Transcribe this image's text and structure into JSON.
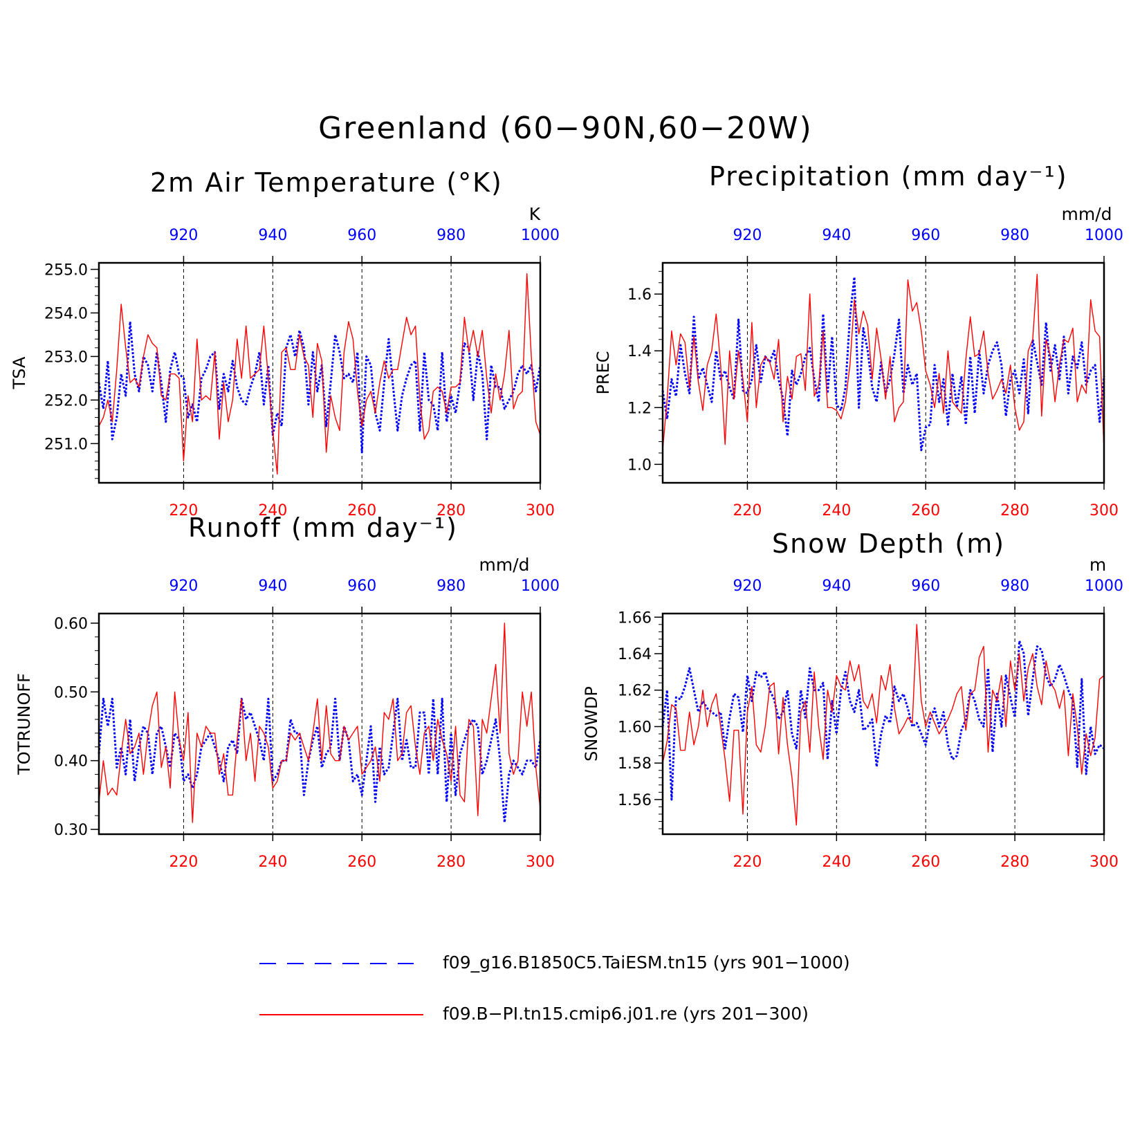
{
  "title": "Greenland (60−90N,60−20W)",
  "legend": [
    {
      "label": "f09_g16.B1850C5.TaiESM.tn15 (yrs 901−1000)",
      "color": "#0000ff",
      "style": "dashed"
    },
    {
      "label": "f09.B−PI.tn15.cmip6.j01.re (yrs 201−300)",
      "color": "#ff0000",
      "style": "solid"
    }
  ],
  "chart_data": [
    {
      "type": "line",
      "title": "2m Air Temperature (°K)",
      "ylabel": "TSA",
      "units": "K",
      "ylim": [
        250.1,
        255.15
      ],
      "yticks": [
        251.0,
        252.0,
        253.0,
        254.0,
        255.0
      ],
      "ytick_labels": [
        "251.0",
        "252.0",
        "253.0",
        "254.0",
        "255.0"
      ],
      "xlim_bottom": [
        201,
        300
      ],
      "xlim_top": [
        901,
        1000
      ],
      "xticks_bottom": [
        220,
        240,
        260,
        280,
        300
      ],
      "xticks_top": [
        920,
        940,
        960,
        980,
        1000
      ],
      "grid_x": [
        220,
        240,
        260,
        280
      ],
      "series": [
        {
          "name": "f09_g16.B1850C5.TaiESM.tn15 (yrs 901−1000)",
          "axis": "top",
          "color": "#0000ff",
          "x_start": 901,
          "x_step": 1,
          "values": [
            252.4,
            251.8,
            252.9,
            251.1,
            251.6,
            252.6,
            252.1,
            253.8,
            252.6,
            252.2,
            253.0,
            252.8,
            252.2,
            253.1,
            252.4,
            251.5,
            252.7,
            253.1,
            252.6,
            252.5,
            251.6,
            251.9,
            251.5,
            252.5,
            252.7,
            253.0,
            253.1,
            251.8,
            252.6,
            252.2,
            252.9,
            252.3,
            252.0,
            251.9,
            252.3,
            252.6,
            253.1,
            251.9,
            252.8,
            251.2,
            251.7,
            251.4,
            253.2,
            253.5,
            253.0,
            253.6,
            253.2,
            251.9,
            253.1,
            252.2,
            252.8,
            251.4,
            252.4,
            253.5,
            253.1,
            252.5,
            252.6,
            252.4,
            253.1,
            250.8,
            253.0,
            252.8,
            251.7,
            251.3,
            252.4,
            253.4,
            252.3,
            251.3,
            252.1,
            252.5,
            252.8,
            252.9,
            251.3,
            253.1,
            252.0,
            251.9,
            251.3,
            253.1,
            251.5,
            252.1,
            251.7,
            252.4,
            253.3,
            253.2,
            252.0,
            253.1,
            252.6,
            251.1,
            252.8,
            252.3,
            252.3,
            251.8,
            252.0,
            252.2,
            252.6,
            252.8,
            252.6,
            252.8,
            252.2,
            252.8
          ]
        },
        {
          "name": "f09.B−PI.tn15.cmip6.j01.re (yrs 201−300)",
          "axis": "bottom",
          "color": "#ff0000",
          "x_start": 201,
          "x_step": 1,
          "values": [
            251.4,
            251.6,
            252.0,
            251.5,
            252.7,
            254.2,
            253.2,
            252.4,
            252.5,
            252.3,
            253.0,
            253.5,
            253.3,
            253.2,
            252.1,
            252.0,
            252.6,
            252.6,
            252.5,
            250.6,
            252.1,
            251.5,
            253.4,
            252.0,
            252.1,
            252.0,
            253.1,
            251.1,
            252.4,
            251.5,
            252.0,
            253.4,
            252.5,
            253.7,
            252.5,
            252.6,
            252.7,
            253.7,
            252.5,
            251.3,
            250.3,
            253.1,
            253.2,
            252.7,
            252.7,
            253.5,
            253.0,
            252.8,
            251.6,
            253.3,
            252.9,
            250.8,
            252.1,
            251.6,
            251.3,
            253.1,
            253.8,
            253.4,
            252.2,
            251.4,
            252.0,
            252.2,
            251.7,
            252.4,
            252.9,
            252.5,
            252.7,
            252.7,
            253.3,
            253.9,
            253.5,
            253.7,
            252.0,
            251.1,
            251.3,
            252.2,
            252.3,
            252.2,
            251.7,
            252.3,
            252.3,
            252.4,
            253.9,
            253.1,
            253.6,
            253.0,
            253.6,
            252.5,
            251.7,
            252.6,
            252.0,
            252.6,
            253.6,
            251.8,
            252.1,
            252.2,
            254.9,
            253.0,
            251.5,
            251.2
          ]
        }
      ]
    },
    {
      "type": "line",
      "title": "Precipitation (mm day⁻¹)",
      "ylabel": "PREC",
      "units": "mm/d",
      "ylim": [
        0.935,
        1.71
      ],
      "yticks": [
        1.0,
        1.2,
        1.4,
        1.6
      ],
      "ytick_labels": [
        "1.0",
        "1.2",
        "1.4",
        "1.6"
      ],
      "xlim_bottom": [
        201,
        300
      ],
      "xlim_top": [
        901,
        1000
      ],
      "xticks_bottom": [
        220,
        240,
        260,
        280,
        300
      ],
      "xticks_top": [
        920,
        940,
        960,
        980,
        1000
      ],
      "grid_x": [
        220,
        240,
        260,
        280
      ],
      "series": [
        {
          "name": "f09_g16.B1850C5.TaiESM.tn15 (yrs 901−1000)",
          "axis": "top",
          "color": "#0000ff",
          "x_start": 901,
          "x_step": 1,
          "values": [
            1.26,
            1.16,
            1.3,
            1.24,
            1.42,
            1.32,
            1.25,
            1.52,
            1.3,
            1.34,
            1.28,
            1.22,
            1.4,
            1.3,
            1.33,
            1.27,
            1.23,
            1.51,
            1.26,
            1.25,
            1.3,
            1.42,
            1.29,
            1.38,
            1.36,
            1.4,
            1.3,
            1.23,
            1.1,
            1.33,
            1.28,
            1.32,
            1.38,
            1.41,
            1.3,
            1.22,
            1.53,
            1.25,
            1.45,
            1.21,
            1.19,
            1.27,
            1.52,
            1.66,
            1.2,
            1.48,
            1.4,
            1.27,
            1.22,
            1.36,
            1.25,
            1.3,
            1.39,
            1.51,
            1.25,
            1.35,
            1.28,
            1.32,
            1.05,
            1.13,
            1.14,
            1.35,
            1.22,
            1.3,
            1.14,
            1.32,
            1.2,
            1.31,
            1.14,
            1.38,
            1.18,
            1.4,
            1.25,
            1.35,
            1.4,
            1.43,
            1.35,
            1.17,
            1.3,
            1.33,
            1.25,
            1.37,
            1.18,
            1.44,
            1.36,
            1.28,
            1.5,
            1.33,
            1.42,
            1.3,
            1.45,
            1.25,
            1.38,
            1.34,
            1.43,
            1.28,
            1.33,
            1.35,
            1.15,
            1.31
          ]
        },
        {
          "name": "f09.B−PI.tn15.cmip6.j01.re (yrs 201−300)",
          "axis": "bottom",
          "color": "#ff0000",
          "x_start": 201,
          "x_step": 1,
          "values": [
            1.05,
            1.23,
            1.47,
            1.35,
            1.46,
            1.43,
            1.27,
            1.45,
            1.29,
            1.19,
            1.35,
            1.4,
            1.53,
            1.35,
            1.07,
            1.4,
            1.23,
            1.4,
            1.3,
            1.15,
            1.5,
            1.2,
            1.35,
            1.38,
            1.36,
            1.3,
            1.44,
            1.15,
            1.31,
            1.23,
            1.38,
            1.39,
            1.26,
            1.6,
            1.24,
            1.28,
            1.47,
            1.2,
            1.2,
            1.19,
            1.16,
            1.22,
            1.35,
            1.58,
            1.46,
            1.54,
            1.49,
            1.3,
            1.48,
            1.37,
            1.23,
            1.38,
            1.15,
            1.2,
            1.22,
            1.65,
            1.54,
            1.57,
            1.47,
            1.33,
            1.28,
            1.2,
            1.32,
            1.18,
            1.4,
            1.22,
            1.2,
            1.18,
            1.37,
            1.52,
            1.38,
            1.39,
            1.47,
            1.32,
            1.23,
            1.26,
            1.3,
            1.25,
            1.35,
            1.2,
            1.12,
            1.15,
            1.4,
            1.44,
            1.67,
            1.17,
            1.44,
            1.38,
            1.22,
            1.35,
            1.44,
            1.43,
            1.48,
            1.22,
            1.28,
            1.25,
            1.58,
            1.47,
            1.45,
            1.05
          ]
        }
      ]
    },
    {
      "type": "line",
      "title": "Runoff (mm day⁻¹)",
      "ylabel": "TOTRUNOFF",
      "units": "mm/d",
      "ylim": [
        0.293,
        0.614
      ],
      "yticks": [
        0.3,
        0.4,
        0.5,
        0.6
      ],
      "ytick_labels": [
        "0.30",
        "0.40",
        "0.50",
        "0.60"
      ],
      "xlim_bottom": [
        201,
        300
      ],
      "xlim_top": [
        901,
        1000
      ],
      "xticks_bottom": [
        220,
        240,
        260,
        280,
        300
      ],
      "xticks_top": [
        920,
        940,
        960,
        980,
        1000
      ],
      "grid_x": [
        220,
        240,
        260,
        280
      ],
      "series": [
        {
          "name": "f09_g16.B1850C5.TaiESM.tn15 (yrs 901−1000)",
          "axis": "top",
          "color": "#0000ff",
          "x_start": 901,
          "x_step": 1,
          "values": [
            0.41,
            0.49,
            0.45,
            0.49,
            0.39,
            0.42,
            0.38,
            0.46,
            0.37,
            0.42,
            0.45,
            0.44,
            0.38,
            0.44,
            0.45,
            0.42,
            0.39,
            0.44,
            0.43,
            0.37,
            0.38,
            0.36,
            0.38,
            0.42,
            0.43,
            0.44,
            0.42,
            0.4,
            0.37,
            0.42,
            0.43,
            0.41,
            0.49,
            0.46,
            0.47,
            0.45,
            0.43,
            0.4,
            0.49,
            0.37,
            0.38,
            0.4,
            0.4,
            0.46,
            0.44,
            0.44,
            0.35,
            0.4,
            0.43,
            0.45,
            0.39,
            0.41,
            0.42,
            0.49,
            0.4,
            0.45,
            0.43,
            0.37,
            0.38,
            0.35,
            0.4,
            0.45,
            0.34,
            0.42,
            0.38,
            0.39,
            0.44,
            0.49,
            0.4,
            0.43,
            0.39,
            0.39,
            0.47,
            0.47,
            0.38,
            0.49,
            0.38,
            0.49,
            0.34,
            0.44,
            0.35,
            0.41,
            0.43,
            0.45,
            0.46,
            0.45,
            0.38,
            0.4,
            0.43,
            0.46,
            0.4,
            0.31,
            0.38,
            0.4,
            0.39,
            0.38,
            0.4,
            0.4,
            0.39,
            0.43
          ]
        },
        {
          "name": "f09.B−PI.tn15.cmip6.j01.re (yrs 201−300)",
          "axis": "bottom",
          "color": "#ff0000",
          "x_start": 201,
          "x_step": 1,
          "values": [
            0.34,
            0.4,
            0.35,
            0.36,
            0.35,
            0.41,
            0.46,
            0.41,
            0.42,
            0.44,
            0.38,
            0.44,
            0.48,
            0.5,
            0.39,
            0.42,
            0.36,
            0.5,
            0.43,
            0.4,
            0.47,
            0.31,
            0.44,
            0.42,
            0.45,
            0.44,
            0.44,
            0.38,
            0.41,
            0.35,
            0.35,
            0.43,
            0.49,
            0.4,
            0.44,
            0.37,
            0.45,
            0.44,
            0.42,
            0.36,
            0.37,
            0.4,
            0.4,
            0.44,
            0.43,
            0.44,
            0.42,
            0.4,
            0.44,
            0.49,
            0.4,
            0.48,
            0.41,
            0.4,
            0.4,
            0.45,
            0.43,
            0.44,
            0.45,
            0.38,
            0.39,
            0.4,
            0.42,
            0.37,
            0.47,
            0.46,
            0.49,
            0.4,
            0.41,
            0.47,
            0.48,
            0.42,
            0.38,
            0.44,
            0.45,
            0.4,
            0.46,
            0.43,
            0.41,
            0.37,
            0.45,
            0.35,
            0.34,
            0.46,
            0.45,
            0.32,
            0.46,
            0.44,
            0.49,
            0.54,
            0.44,
            0.6,
            0.41,
            0.38,
            0.4,
            0.5,
            0.45,
            0.5,
            0.39,
            0.33
          ]
        }
      ]
    },
    {
      "type": "line",
      "title": "Snow Depth (m)",
      "ylabel": "SNOWDP",
      "units": "m",
      "ylim": [
        1.541,
        1.662
      ],
      "yticks": [
        1.56,
        1.58,
        1.6,
        1.62,
        1.64,
        1.66
      ],
      "ytick_labels": [
        "1.56",
        "1.58",
        "1.60",
        "1.62",
        "1.64",
        "1.66"
      ],
      "xlim_bottom": [
        201,
        300
      ],
      "xlim_top": [
        901,
        1000
      ],
      "xticks_bottom": [
        220,
        240,
        260,
        280,
        300
      ],
      "xticks_top": [
        920,
        940,
        960,
        980,
        1000
      ],
      "grid_x": [
        220,
        240,
        260,
        280
      ],
      "series": [
        {
          "name": "f09_g16.B1850C5.TaiESM.tn15 (yrs 901−1000)",
          "axis": "top",
          "color": "#0000ff",
          "x_start": 901,
          "x_step": 1,
          "values": [
            1.6,
            1.62,
            1.56,
            1.616,
            1.615,
            1.622,
            1.632,
            1.62,
            1.608,
            1.614,
            1.61,
            1.608,
            1.606,
            1.608,
            1.588,
            1.605,
            1.618,
            1.616,
            1.597,
            1.628,
            1.614,
            1.63,
            1.627,
            1.63,
            1.62,
            1.615,
            1.604,
            1.608,
            1.62,
            1.596,
            1.588,
            1.62,
            1.605,
            1.632,
            1.62,
            1.62,
            1.624,
            1.582,
            1.614,
            1.596,
            1.62,
            1.63,
            1.614,
            1.608,
            1.62,
            1.598,
            1.6,
            1.604,
            1.578,
            1.596,
            1.606,
            1.602,
            1.622,
            1.614,
            1.618,
            1.61,
            1.6,
            1.602,
            1.596,
            1.59,
            1.604,
            1.61,
            1.6,
            1.608,
            1.59,
            1.582,
            1.584,
            1.598,
            1.604,
            1.62,
            1.614,
            1.604,
            1.6,
            1.632,
            1.586,
            1.618,
            1.6,
            1.628,
            1.616,
            1.605,
            1.647,
            1.64,
            1.606,
            1.626,
            1.644,
            1.642,
            1.628,
            1.622,
            1.626,
            1.634,
            1.628,
            1.62,
            1.614,
            1.578,
            1.626,
            1.574,
            1.6,
            1.585,
            1.59,
            1.588
          ]
        },
        {
          "name": "f09.B−PI.tn15.cmip6.j01.re (yrs 201−300)",
          "axis": "bottom",
          "color": "#ff0000",
          "x_start": 201,
          "x_step": 1,
          "values": [
            1.58,
            1.592,
            1.612,
            1.61,
            1.587,
            1.587,
            1.608,
            1.59,
            1.6,
            1.62,
            1.6,
            1.612,
            1.618,
            1.6,
            1.582,
            1.559,
            1.598,
            1.598,
            1.552,
            1.608,
            1.622,
            1.59,
            1.586,
            1.6,
            1.622,
            1.624,
            1.585,
            1.616,
            1.59,
            1.572,
            1.546,
            1.608,
            1.614,
            1.586,
            1.63,
            1.6,
            1.582,
            1.62,
            1.608,
            1.628,
            1.622,
            1.62,
            1.636,
            1.625,
            1.634,
            1.614,
            1.61,
            1.618,
            1.602,
            1.628,
            1.62,
            1.634,
            1.61,
            1.596,
            1.6,
            1.605,
            1.602,
            1.656,
            1.614,
            1.6,
            1.608,
            1.602,
            1.596,
            1.6,
            1.604,
            1.61,
            1.618,
            1.622,
            1.598,
            1.618,
            1.62,
            1.638,
            1.644,
            1.586,
            1.62,
            1.614,
            1.628,
            1.6,
            1.636,
            1.62,
            1.64,
            1.614,
            1.632,
            1.64,
            1.622,
            1.612,
            1.636,
            1.624,
            1.62,
            1.61,
            1.62,
            1.584,
            1.618,
            1.6,
            1.574,
            1.596,
            1.584,
            1.594,
            1.626,
            1.628
          ]
        }
      ]
    }
  ]
}
